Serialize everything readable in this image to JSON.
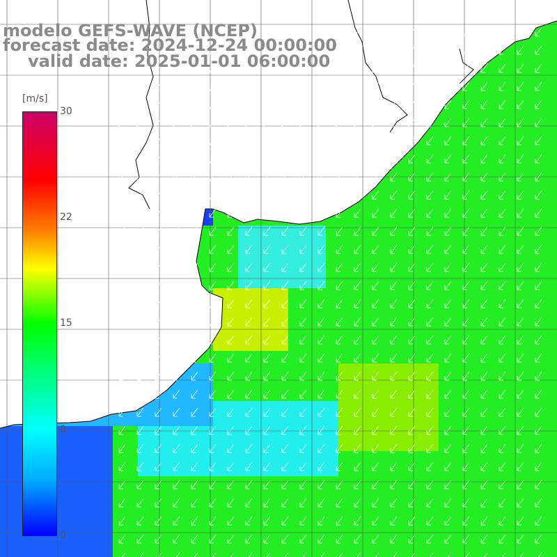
{
  "title": {
    "model": "modelo GEFS-WAVE (NCEP)",
    "forecast": "forecast date: 2024-12-24 00:00:00",
    "valid": "valid date: 2025-01-01 06:00:00"
  },
  "colorbar": {
    "unit": "[m/s]",
    "ticks": [
      "30",
      "22",
      "15",
      "8",
      "0"
    ],
    "range": [
      0,
      30
    ],
    "colors": [
      "#0000ff",
      "#00aaff",
      "#00ffff",
      "#00ff80",
      "#00ff00",
      "#ffff00",
      "#ff8000",
      "#ff0000",
      "#cc0066"
    ]
  },
  "map": {
    "land_color": "#ffffff",
    "coast_color": "#000000",
    "grid_color": "#555555",
    "arrow_color": "#ffffff",
    "wind_direction": "from north-east",
    "grid_on": true
  }
}
